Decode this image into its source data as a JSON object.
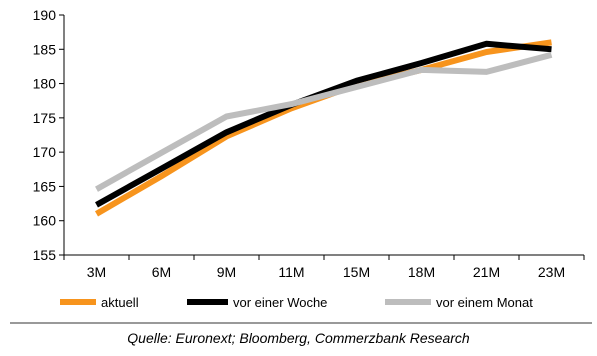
{
  "chart_data": {
    "type": "line",
    "categories": [
      "3M",
      "6M",
      "9M",
      "11M",
      "15M",
      "18M",
      "21M",
      "23M"
    ],
    "ylim": [
      155,
      190
    ],
    "yticks": [
      155,
      160,
      165,
      170,
      175,
      180,
      185,
      190
    ],
    "grid": false,
    "legend_position": "bottom",
    "series": [
      {
        "name": "aktuell",
        "color": "#f7941d",
        "values": [
          161.0,
          166.5,
          172.3,
          176.4,
          179.8,
          182.0,
          184.6,
          186.0
        ]
      },
      {
        "name": "vor einer Woche",
        "color": "#000000",
        "values": [
          162.3,
          167.6,
          172.9,
          176.9,
          180.4,
          183.0,
          185.8,
          185.0
        ]
      },
      {
        "name": "vor einem Monat",
        "color": "#bdbdbd",
        "values": [
          164.6,
          169.9,
          175.2,
          177.0,
          179.5,
          182.0,
          181.7,
          184.2
        ]
      }
    ]
  },
  "source": "Quelle: Euronext; Bloomberg, Commerzbank Research"
}
